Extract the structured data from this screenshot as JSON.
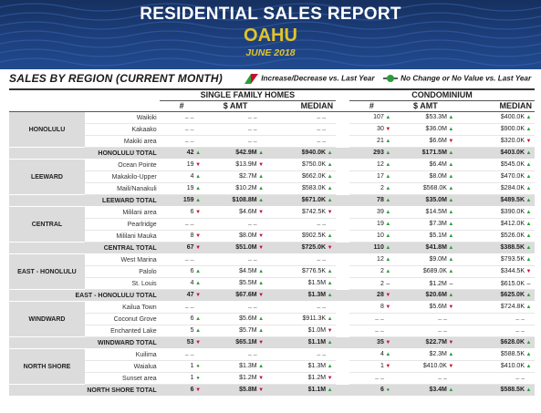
{
  "header": {
    "title": "RESIDENTIAL SALES REPORT",
    "place": "OAHU",
    "date": "JUNE 2018"
  },
  "section_title": "SALES BY REGION (CURRENT MONTH)",
  "legend": {
    "change_label": "Increase/Decrease vs. Last Year",
    "nochange_label": "No Change or No Value vs. Last Year",
    "up_color": "#2a9d3a",
    "down_color": "#c8102e"
  },
  "groups": {
    "sfh": "SINGLE FAMILY HOMES",
    "condo": "CONDOMINIUM"
  },
  "columns": {
    "count": "#",
    "amount": "$ AMT",
    "median": "MEDIAN"
  },
  "regions": [
    {
      "name": "HONOLULU",
      "areas": [
        {
          "name": "Waikiki",
          "sfh": [
            [
              "– –",
              ""
            ],
            [
              "– –",
              ""
            ],
            [
              "– –",
              ""
            ]
          ],
          "condo": [
            [
              "107",
              "up"
            ],
            [
              "$53.3M",
              "up"
            ],
            [
              "$400.0K",
              "up"
            ]
          ]
        },
        {
          "name": "Kakaako",
          "sfh": [
            [
              "– –",
              ""
            ],
            [
              "– –",
              ""
            ],
            [
              "– –",
              ""
            ]
          ],
          "condo": [
            [
              "30",
              "dn"
            ],
            [
              "$36.0M",
              "up"
            ],
            [
              "$900.0K",
              "up"
            ]
          ]
        },
        {
          "name": "Makiki area",
          "sfh": [
            [
              "– –",
              ""
            ],
            [
              "– –",
              ""
            ],
            [
              "– –",
              ""
            ]
          ],
          "condo": [
            [
              "21",
              "up"
            ],
            [
              "$6.6M",
              "dn"
            ],
            [
              "$320.0K",
              "dn"
            ]
          ]
        }
      ],
      "total": {
        "label": "HONOLULU TOTAL",
        "sfh": [
          [
            "42",
            "up"
          ],
          [
            "$42.9M",
            "up"
          ],
          [
            "$940.0K",
            "up"
          ]
        ],
        "condo": [
          [
            "293",
            "up"
          ],
          [
            "$171.5M",
            "up"
          ],
          [
            "$403.0K",
            "up"
          ]
        ]
      }
    },
    {
      "name": "LEEWARD",
      "areas": [
        {
          "name": "Ocean Pointe",
          "sfh": [
            [
              "19",
              "dn"
            ],
            [
              "$13.9M",
              "dn"
            ],
            [
              "$750.0K",
              "up"
            ]
          ],
          "condo": [
            [
              "12",
              "up"
            ],
            [
              "$6.4M",
              "up"
            ],
            [
              "$545.0K",
              "up"
            ]
          ]
        },
        {
          "name": "Makakilo-Upper",
          "sfh": [
            [
              "4",
              "up"
            ],
            [
              "$2.7M",
              "up"
            ],
            [
              "$662.0K",
              "up"
            ]
          ],
          "condo": [
            [
              "17",
              "up"
            ],
            [
              "$8.0M",
              "up"
            ],
            [
              "$470.0K",
              "up"
            ]
          ]
        },
        {
          "name": "Maili/Nanakuli",
          "sfh": [
            [
              "19",
              "up"
            ],
            [
              "$10.2M",
              "up"
            ],
            [
              "$583.0K",
              "up"
            ]
          ],
          "condo": [
            [
              "2",
              "up"
            ],
            [
              "$568.0K",
              "up"
            ],
            [
              "$284.0K",
              "up"
            ]
          ]
        }
      ],
      "total": {
        "label": "LEEWARD TOTAL",
        "sfh": [
          [
            "159",
            "up"
          ],
          [
            "$108.8M",
            "up"
          ],
          [
            "$671.0K",
            "up"
          ]
        ],
        "condo": [
          [
            "78",
            "up"
          ],
          [
            "$35.0M",
            "up"
          ],
          [
            "$489.5K",
            "up"
          ]
        ]
      }
    },
    {
      "name": "CENTRAL",
      "areas": [
        {
          "name": "Mililani area",
          "sfh": [
            [
              "6",
              "dn"
            ],
            [
              "$4.6M",
              "dn"
            ],
            [
              "$742.5K",
              "dn"
            ]
          ],
          "condo": [
            [
              "39",
              "up"
            ],
            [
              "$14.5M",
              "up"
            ],
            [
              "$390.0K",
              "up"
            ]
          ]
        },
        {
          "name": "Pearlridge",
          "sfh": [
            [
              "– –",
              ""
            ],
            [
              "– –",
              ""
            ],
            [
              "– –",
              ""
            ]
          ],
          "condo": [
            [
              "19",
              "up"
            ],
            [
              "$7.3M",
              "up"
            ],
            [
              "$412.0K",
              "up"
            ]
          ]
        },
        {
          "name": "Mililani Mauka",
          "sfh": [
            [
              "8",
              "dn"
            ],
            [
              "$8.0M",
              "dn"
            ],
            [
              "$902.5K",
              "up"
            ]
          ],
          "condo": [
            [
              "10",
              "up"
            ],
            [
              "$5.1M",
              "up"
            ],
            [
              "$526.0K",
              "up"
            ]
          ]
        }
      ],
      "total": {
        "label": "CENTRAL TOTAL",
        "sfh": [
          [
            "67",
            "dn"
          ],
          [
            "$51.0M",
            "dn"
          ],
          [
            "$725.0K",
            "dn"
          ]
        ],
        "condo": [
          [
            "110",
            "up"
          ],
          [
            "$41.8M",
            "up"
          ],
          [
            "$388.5K",
            "up"
          ]
        ]
      }
    },
    {
      "name": "EAST - HONOLULU",
      "areas": [
        {
          "name": "West Marina",
          "sfh": [
            [
              "– –",
              ""
            ],
            [
              "– –",
              ""
            ],
            [
              "– –",
              ""
            ]
          ],
          "condo": [
            [
              "12",
              "up"
            ],
            [
              "$9.0M",
              "up"
            ],
            [
              "$793.5K",
              "up"
            ]
          ]
        },
        {
          "name": "Palolo",
          "sfh": [
            [
              "6",
              "up"
            ],
            [
              "$4.5M",
              "up"
            ],
            [
              "$776.5K",
              "up"
            ]
          ],
          "condo": [
            [
              "2",
              "up"
            ],
            [
              "$689.0K",
              "up"
            ],
            [
              "$344.5K",
              "dn"
            ]
          ]
        },
        {
          "name": "St. Louis",
          "sfh": [
            [
              "4",
              "up"
            ],
            [
              "$5.5M",
              "up"
            ],
            [
              "$1.5M",
              "up"
            ]
          ],
          "condo": [
            [
              "2",
              "–"
            ],
            [
              "$1.2M",
              "–"
            ],
            [
              "$615.0K",
              "–"
            ]
          ]
        }
      ],
      "total": {
        "label": "EAST - HONOLULU TOTAL",
        "sfh": [
          [
            "47",
            "dn"
          ],
          [
            "$67.6M",
            "dn"
          ],
          [
            "$1.3M",
            "up"
          ]
        ],
        "condo": [
          [
            "28",
            "dn"
          ],
          [
            "$20.6M",
            "up"
          ],
          [
            "$625.0K",
            "up"
          ]
        ]
      }
    },
    {
      "name": "WINDWARD",
      "areas": [
        {
          "name": "Kailua Town",
          "sfh": [
            [
              "– –",
              ""
            ],
            [
              "– –",
              ""
            ],
            [
              "– –",
              ""
            ]
          ],
          "condo": [
            [
              "8",
              "dn"
            ],
            [
              "$5.6M",
              "dn"
            ],
            [
              "$724.8K",
              "up"
            ]
          ]
        },
        {
          "name": "Coconut Grove",
          "sfh": [
            [
              "6",
              "up"
            ],
            [
              "$5.6M",
              "up"
            ],
            [
              "$911.3K",
              "up"
            ]
          ],
          "condo": [
            [
              "– –",
              ""
            ],
            [
              "– –",
              ""
            ],
            [
              "– –",
              ""
            ]
          ]
        },
        {
          "name": "Enchanted Lake",
          "sfh": [
            [
              "5",
              "up"
            ],
            [
              "$5.7M",
              "up"
            ],
            [
              "$1.0M",
              "dn"
            ]
          ],
          "condo": [
            [
              "– –",
              ""
            ],
            [
              "– –",
              ""
            ],
            [
              "– –",
              ""
            ]
          ]
        }
      ],
      "total": {
        "label": "WINDWARD TOTAL",
        "sfh": [
          [
            "53",
            "dn"
          ],
          [
            "$65.1M",
            "dn"
          ],
          [
            "$1.1M",
            "up"
          ]
        ],
        "condo": [
          [
            "35",
            "dn"
          ],
          [
            "$22.7M",
            "dn"
          ],
          [
            "$628.0K",
            "up"
          ]
        ]
      }
    },
    {
      "name": "NORTH SHORE",
      "areas": [
        {
          "name": "Kuilima",
          "sfh": [
            [
              "– –",
              ""
            ],
            [
              "– –",
              ""
            ],
            [
              "– –",
              ""
            ]
          ],
          "condo": [
            [
              "4",
              "up"
            ],
            [
              "$2.3M",
              "up"
            ],
            [
              "$588.5K",
              "up"
            ]
          ]
        },
        {
          "name": "Waialua",
          "sfh": [
            [
              "1",
              "eq"
            ],
            [
              "$1.3M",
              "up"
            ],
            [
              "$1.3M",
              "up"
            ]
          ],
          "condo": [
            [
              "1",
              "dn"
            ],
            [
              "$410.0K",
              "dn"
            ],
            [
              "$410.0K",
              "up"
            ]
          ]
        },
        {
          "name": "Sunset area",
          "sfh": [
            [
              "1",
              "eq"
            ],
            [
              "$1.2M",
              "dn"
            ],
            [
              "$1.2M",
              "dn"
            ]
          ],
          "condo": [
            [
              "– –",
              ""
            ],
            [
              "– –",
              ""
            ],
            [
              "– –",
              ""
            ]
          ]
        }
      ],
      "total": {
        "label": "NORTH SHORE TOTAL",
        "sfh": [
          [
            "6",
            "dn"
          ],
          [
            "$5.8M",
            "dn"
          ],
          [
            "$1.1M",
            "up"
          ]
        ],
        "condo": [
          [
            "6",
            "eq"
          ],
          [
            "$3.4M",
            "up"
          ],
          [
            "$588.5K",
            "up"
          ]
        ]
      }
    }
  ]
}
